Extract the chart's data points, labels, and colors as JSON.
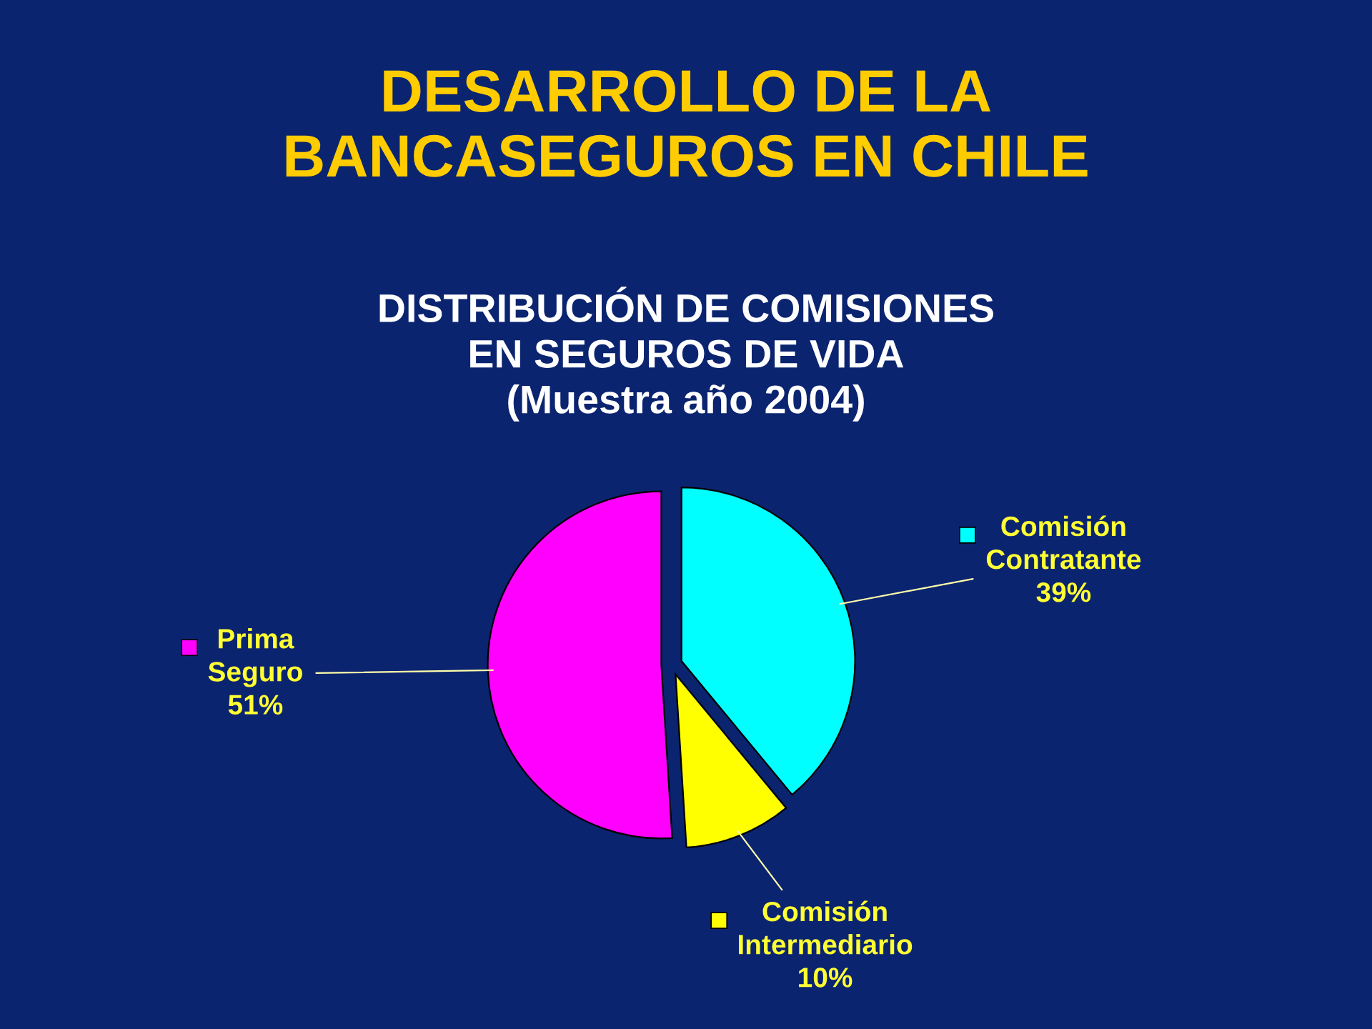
{
  "chart_data": {
    "type": "pie",
    "title": "DESARROLLO DE LA\nBANCASEGUROS EN CHILE",
    "subtitle": "DISTRIBUCIÓN DE COMISIONES\nEN SEGUROS DE VIDA\n(Muestra año 2004)",
    "categories": [
      "Comisión Contratante",
      "Comisión Intermediario",
      "Prima Seguro"
    ],
    "values": [
      39,
      10,
      51
    ],
    "colors": [
      "#00ffff",
      "#ffff00",
      "#ff00ff"
    ],
    "value_labels": [
      "39%",
      "10%",
      "51%"
    ],
    "legend": true
  }
}
